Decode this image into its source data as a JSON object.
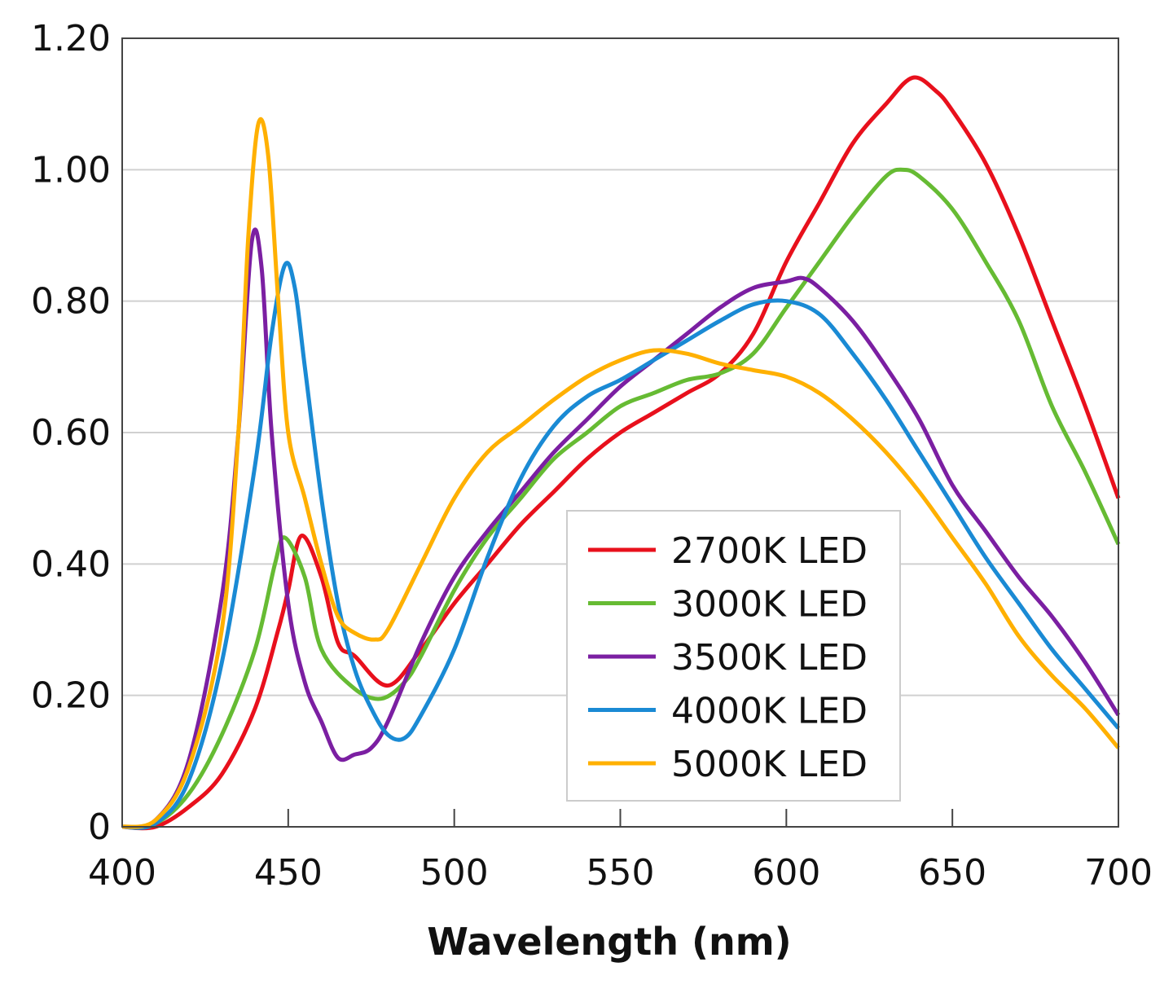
{
  "chart_data": {
    "type": "line",
    "title": "",
    "xlabel": "Wavelength (nm)",
    "ylabel": "",
    "xlim": [
      400,
      700
    ],
    "ylim": [
      0,
      1.2
    ],
    "xticks": [
      "400",
      "450",
      "500",
      "550",
      "600",
      "650",
      "700"
    ],
    "yticks": [
      "0",
      "0.20",
      "0.40",
      "0.60",
      "0.80",
      "1.00",
      "1.20"
    ],
    "grid": "horizontal",
    "legend_placement": "bottom-right",
    "series": [
      {
        "name": "2700K LED",
        "color": "#e8101c",
        "points": [
          [
            400,
            0
          ],
          [
            410,
            0
          ],
          [
            420,
            0.03
          ],
          [
            430,
            0.08
          ],
          [
            440,
            0.18
          ],
          [
            447,
            0.3
          ],
          [
            450,
            0.36
          ],
          [
            454,
            0.443
          ],
          [
            460,
            0.38
          ],
          [
            465,
            0.28
          ],
          [
            470,
            0.26
          ],
          [
            480,
            0.215
          ],
          [
            490,
            0.27
          ],
          [
            500,
            0.34
          ],
          [
            510,
            0.4
          ],
          [
            520,
            0.46
          ],
          [
            530,
            0.51
          ],
          [
            540,
            0.56
          ],
          [
            550,
            0.6
          ],
          [
            560,
            0.63
          ],
          [
            570,
            0.66
          ],
          [
            580,
            0.69
          ],
          [
            590,
            0.75
          ],
          [
            600,
            0.86
          ],
          [
            610,
            0.95
          ],
          [
            620,
            1.04
          ],
          [
            630,
            1.1
          ],
          [
            638,
            1.14
          ],
          [
            645,
            1.12
          ],
          [
            650,
            1.09
          ],
          [
            660,
            1.01
          ],
          [
            670,
            0.9
          ],
          [
            680,
            0.77
          ],
          [
            690,
            0.64
          ],
          [
            700,
            0.5
          ]
        ]
      },
      {
        "name": "3000K LED",
        "color": "#66bb33",
        "points": [
          [
            400,
            0
          ],
          [
            410,
            0.005
          ],
          [
            420,
            0.05
          ],
          [
            430,
            0.14
          ],
          [
            440,
            0.27
          ],
          [
            446,
            0.4
          ],
          [
            449,
            0.44
          ],
          [
            455,
            0.38
          ],
          [
            460,
            0.27
          ],
          [
            470,
            0.21
          ],
          [
            478,
            0.195
          ],
          [
            485,
            0.22
          ],
          [
            490,
            0.26
          ],
          [
            500,
            0.36
          ],
          [
            510,
            0.44
          ],
          [
            520,
            0.5
          ],
          [
            530,
            0.56
          ],
          [
            540,
            0.6
          ],
          [
            550,
            0.64
          ],
          [
            560,
            0.66
          ],
          [
            570,
            0.68
          ],
          [
            580,
            0.69
          ],
          [
            590,
            0.72
          ],
          [
            600,
            0.79
          ],
          [
            610,
            0.86
          ],
          [
            620,
            0.93
          ],
          [
            630,
            0.99
          ],
          [
            635,
            1.0
          ],
          [
            640,
            0.99
          ],
          [
            650,
            0.94
          ],
          [
            660,
            0.86
          ],
          [
            670,
            0.77
          ],
          [
            680,
            0.64
          ],
          [
            690,
            0.54
          ],
          [
            700,
            0.43
          ]
        ]
      },
      {
        "name": "3500K LED",
        "color": "#7b1fa2",
        "points": [
          [
            400,
            0
          ],
          [
            410,
            0.01
          ],
          [
            420,
            0.1
          ],
          [
            430,
            0.35
          ],
          [
            435,
            0.6
          ],
          [
            439,
            0.89
          ],
          [
            442,
            0.85
          ],
          [
            445,
            0.6
          ],
          [
            450,
            0.34
          ],
          [
            455,
            0.22
          ],
          [
            460,
            0.16
          ],
          [
            465,
            0.105
          ],
          [
            470,
            0.11
          ],
          [
            475,
            0.12
          ],
          [
            480,
            0.16
          ],
          [
            490,
            0.28
          ],
          [
            500,
            0.38
          ],
          [
            510,
            0.45
          ],
          [
            520,
            0.51
          ],
          [
            530,
            0.57
          ],
          [
            540,
            0.62
          ],
          [
            550,
            0.67
          ],
          [
            560,
            0.71
          ],
          [
            570,
            0.75
          ],
          [
            580,
            0.79
          ],
          [
            590,
            0.82
          ],
          [
            600,
            0.83
          ],
          [
            605,
            0.835
          ],
          [
            610,
            0.82
          ],
          [
            620,
            0.77
          ],
          [
            630,
            0.7
          ],
          [
            640,
            0.62
          ],
          [
            650,
            0.52
          ],
          [
            660,
            0.45
          ],
          [
            670,
            0.38
          ],
          [
            680,
            0.32
          ],
          [
            690,
            0.25
          ],
          [
            700,
            0.17
          ]
        ]
      },
      {
        "name": "4000K LED",
        "color": "#1a8ad4",
        "points": [
          [
            400,
            0
          ],
          [
            410,
            0.005
          ],
          [
            420,
            0.07
          ],
          [
            430,
            0.25
          ],
          [
            440,
            0.55
          ],
          [
            445,
            0.75
          ],
          [
            449,
            0.855
          ],
          [
            452,
            0.82
          ],
          [
            455,
            0.7
          ],
          [
            460,
            0.5
          ],
          [
            465,
            0.34
          ],
          [
            470,
            0.24
          ],
          [
            475,
            0.18
          ],
          [
            480,
            0.14
          ],
          [
            485,
            0.135
          ],
          [
            490,
            0.17
          ],
          [
            500,
            0.27
          ],
          [
            510,
            0.41
          ],
          [
            520,
            0.53
          ],
          [
            530,
            0.61
          ],
          [
            540,
            0.655
          ],
          [
            550,
            0.68
          ],
          [
            560,
            0.71
          ],
          [
            570,
            0.74
          ],
          [
            580,
            0.77
          ],
          [
            590,
            0.795
          ],
          [
            600,
            0.8
          ],
          [
            610,
            0.78
          ],
          [
            620,
            0.72
          ],
          [
            630,
            0.65
          ],
          [
            640,
            0.57
          ],
          [
            650,
            0.49
          ],
          [
            660,
            0.41
          ],
          [
            670,
            0.34
          ],
          [
            680,
            0.27
          ],
          [
            690,
            0.21
          ],
          [
            700,
            0.15
          ]
        ]
      },
      {
        "name": "5000K LED",
        "color": "#ffb000",
        "points": [
          [
            400,
            0
          ],
          [
            410,
            0.01
          ],
          [
            420,
            0.09
          ],
          [
            430,
            0.3
          ],
          [
            435,
            0.6
          ],
          [
            438,
            0.9
          ],
          [
            441,
            1.07
          ],
          [
            444,
            1.02
          ],
          [
            447,
            0.8
          ],
          [
            450,
            0.6
          ],
          [
            455,
            0.5
          ],
          [
            460,
            0.4
          ],
          [
            465,
            0.32
          ],
          [
            470,
            0.295
          ],
          [
            476,
            0.285
          ],
          [
            480,
            0.3
          ],
          [
            490,
            0.4
          ],
          [
            500,
            0.5
          ],
          [
            510,
            0.57
          ],
          [
            520,
            0.61
          ],
          [
            530,
            0.65
          ],
          [
            540,
            0.685
          ],
          [
            550,
            0.71
          ],
          [
            560,
            0.725
          ],
          [
            570,
            0.72
          ],
          [
            580,
            0.705
          ],
          [
            590,
            0.695
          ],
          [
            600,
            0.685
          ],
          [
            610,
            0.66
          ],
          [
            620,
            0.62
          ],
          [
            630,
            0.57
          ],
          [
            640,
            0.51
          ],
          [
            650,
            0.44
          ],
          [
            660,
            0.37
          ],
          [
            670,
            0.29
          ],
          [
            680,
            0.23
          ],
          [
            690,
            0.18
          ],
          [
            700,
            0.12
          ]
        ]
      }
    ]
  }
}
